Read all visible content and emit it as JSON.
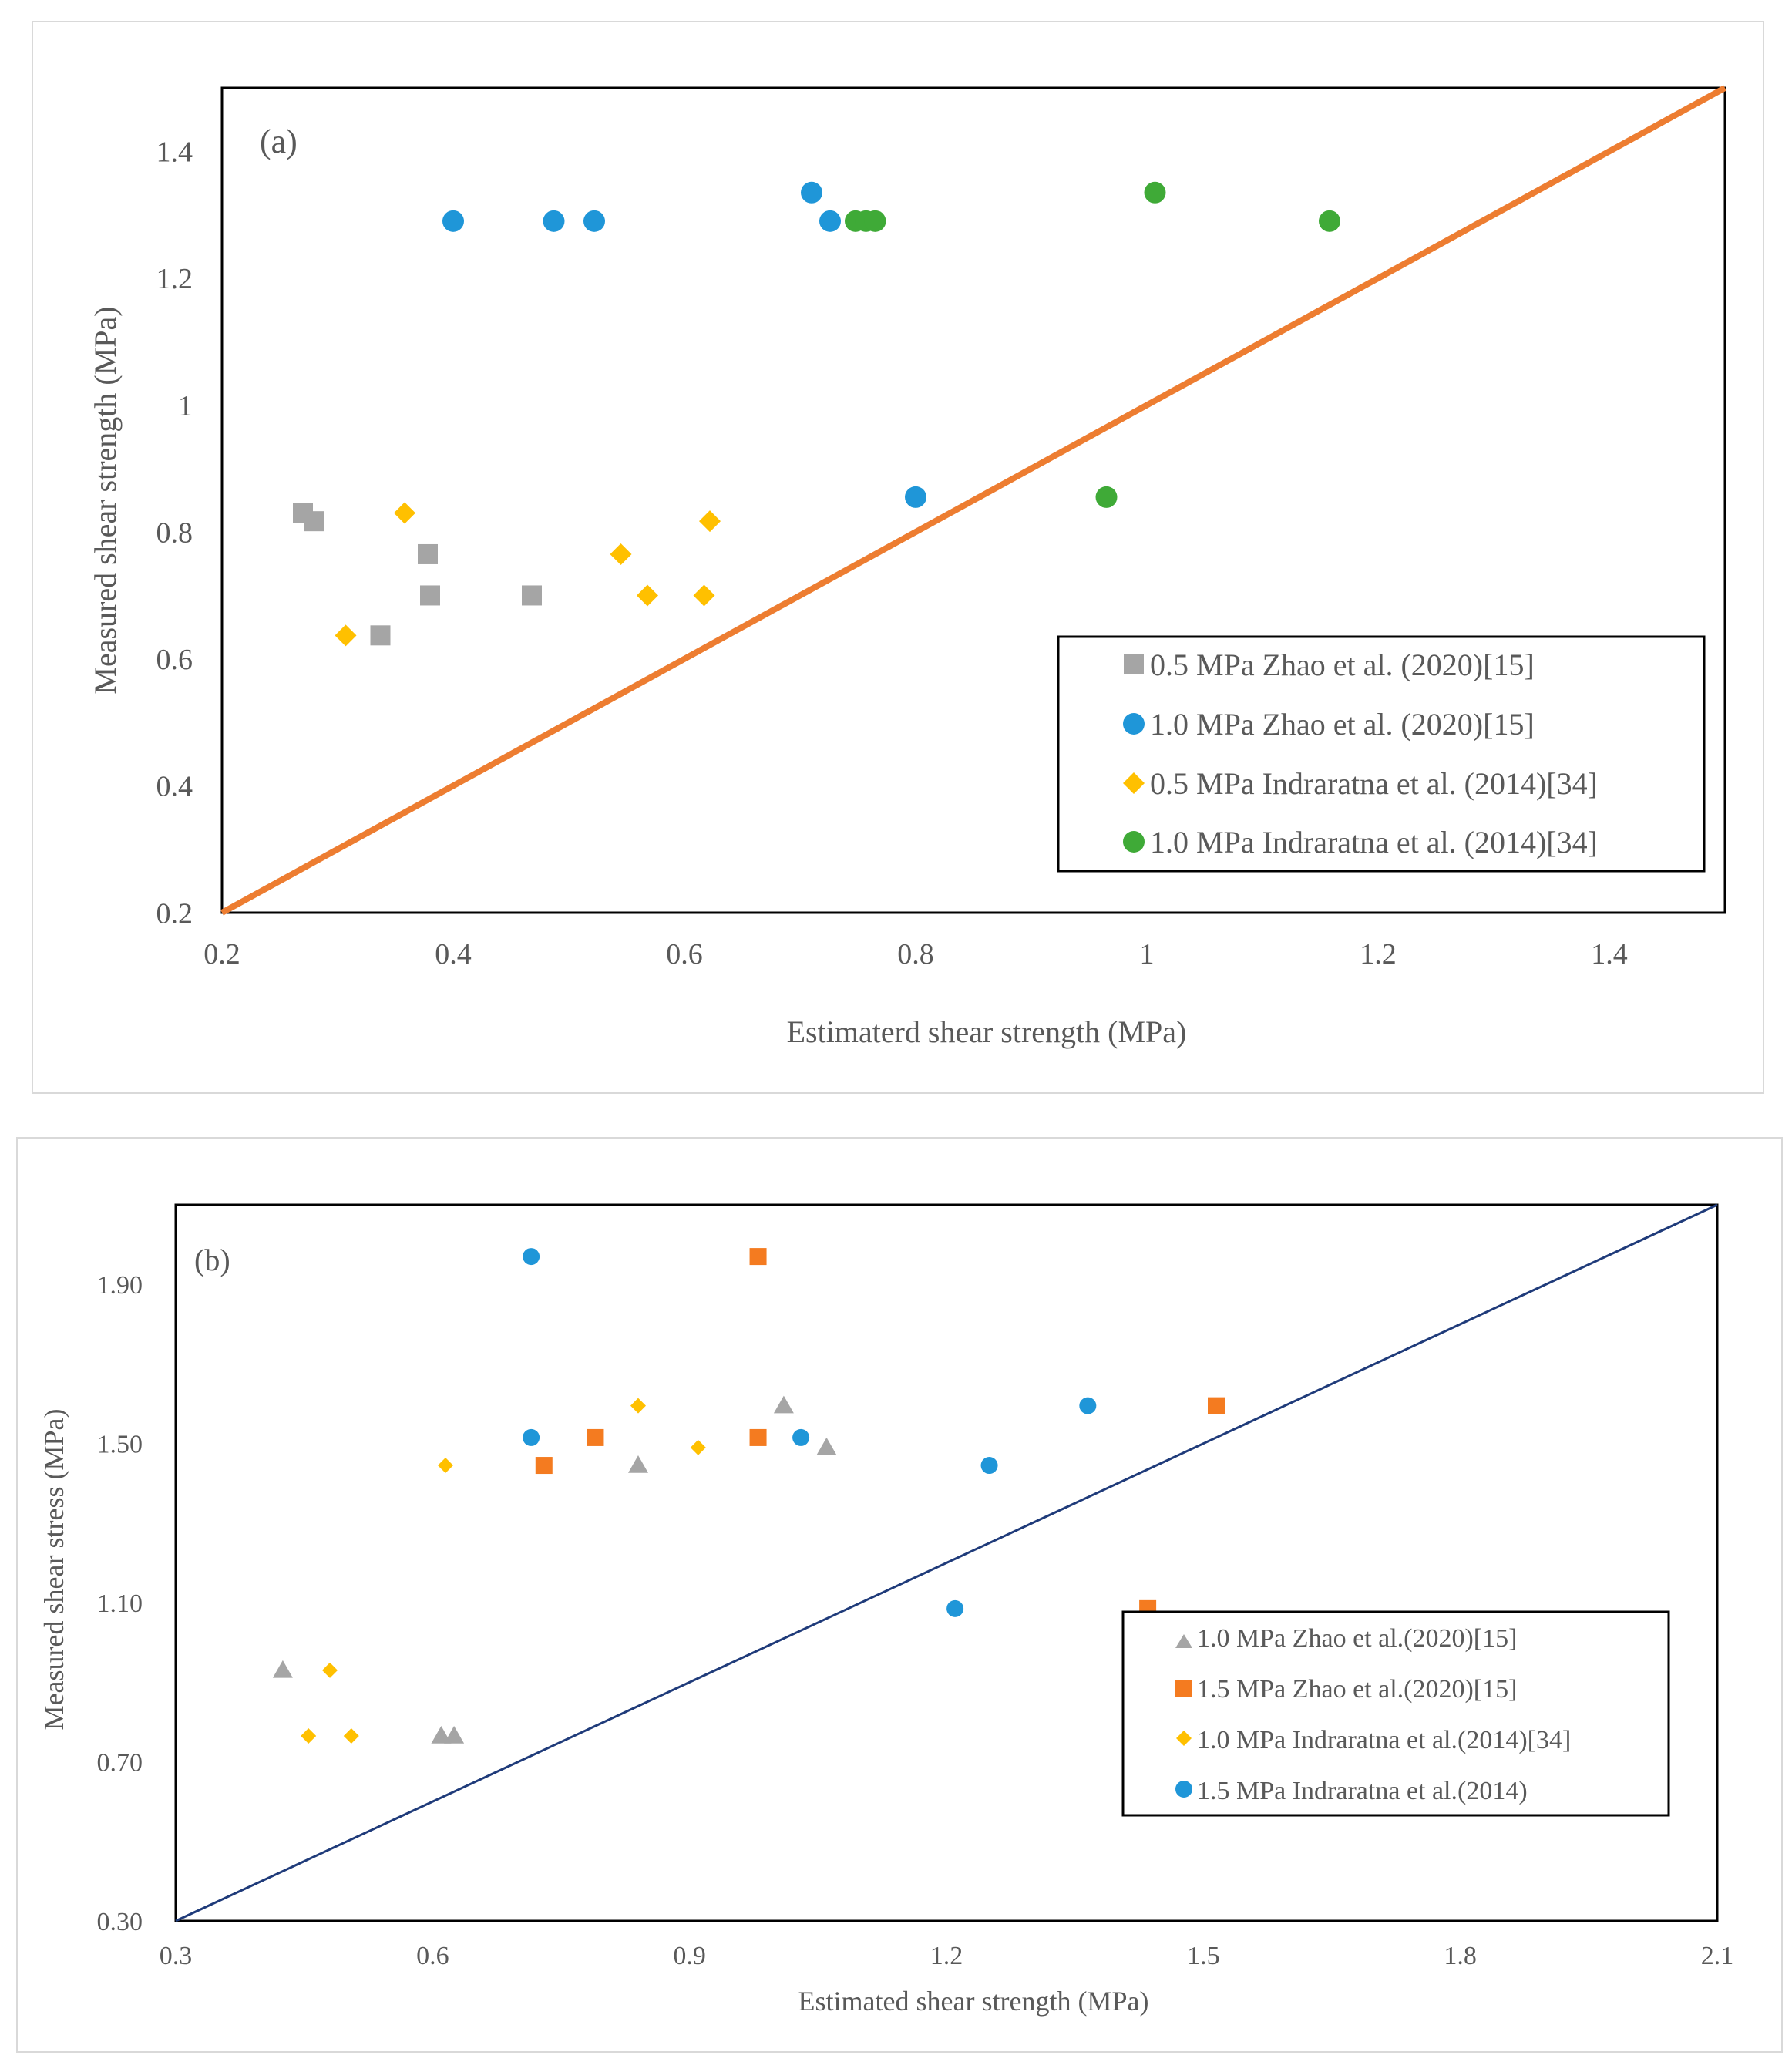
{
  "chart_data": [
    {
      "type": "scatter",
      "panel_label": "(a)",
      "xlabel": "Estimaterd shear strength (MPa)",
      "ylabel": "Measured shear strength (MPa)",
      "xlim": [
        0.2,
        1.5
      ],
      "ylim": [
        0.2,
        1.5
      ],
      "x_ticks": [
        0.2,
        0.4,
        0.6,
        0.8,
        1.0,
        1.2,
        1.4
      ],
      "x_tick_labels": [
        "0.2",
        "0.4",
        "0.6",
        "0.8",
        "1",
        "1.2",
        "1.4"
      ],
      "y_ticks": [
        0.2,
        0.4,
        0.6,
        0.8,
        1.0,
        1.2,
        1.4
      ],
      "y_tick_labels": [
        "0.2",
        "0.4",
        "0.6",
        "0.8",
        "1",
        "1.2",
        "1.4"
      ],
      "grid": false,
      "legend_position": "bottom-right",
      "reference_line": {
        "name": "1:1 line",
        "x": [
          0.2,
          1.5
        ],
        "y": [
          0.2,
          1.5
        ],
        "color": "#ED7D31"
      },
      "series": [
        {
          "name": "0.5 MPa Zhao et al. (2020)[15]",
          "marker": "square",
          "color": "#A5A5A5",
          "x": [
            0.27,
            0.28,
            0.378,
            0.38,
            0.468,
            0.337
          ],
          "y": [
            0.83,
            0.817,
            0.765,
            0.7,
            0.7,
            0.637
          ]
        },
        {
          "name": "1.0 MPa Zhao et al. (2020)[15]",
          "marker": "circle",
          "color": "#1F96D8",
          "x": [
            0.4,
            0.487,
            0.522,
            0.71,
            0.726,
            0.8
          ],
          "y": [
            1.29,
            1.29,
            1.29,
            1.335,
            1.29,
            0.855
          ]
        },
        {
          "name": "0.5 MPa Indraratna et al. (2014)[34]",
          "marker": "diamond",
          "color": "#FFC000",
          "x": [
            0.307,
            0.358,
            0.545,
            0.568,
            0.617,
            0.622
          ],
          "y": [
            0.637,
            0.83,
            0.765,
            0.7,
            0.7,
            0.817
          ]
        },
        {
          "name": "1.0 MPa Indraratna et al. (2014)[34]",
          "marker": "circle",
          "color": "#3FAA37",
          "x": [
            0.748,
            0.757,
            0.765,
            1.007,
            1.158,
            0.965
          ],
          "y": [
            1.29,
            1.29,
            1.29,
            1.335,
            1.29,
            0.855
          ]
        }
      ]
    },
    {
      "type": "scatter",
      "panel_label": "(b)",
      "xlabel": "Estimated shear strength (MPa)",
      "ylabel": "Measured shear stress (MPa)",
      "xlim": [
        0.3,
        2.1
      ],
      "ylim": [
        0.3,
        2.1
      ],
      "x_ticks": [
        0.3,
        0.6,
        0.9,
        1.2,
        1.5,
        1.8,
        2.1
      ],
      "x_tick_labels": [
        "0.3",
        "0.6",
        "0.9",
        "1.2",
        "1.5",
        "1.8",
        "2.1"
      ],
      "y_ticks": [
        0.3,
        0.7,
        1.1,
        1.5,
        1.9
      ],
      "y_tick_labels": [
        "0.30",
        "0.70",
        "1.10",
        "1.50",
        "1.90"
      ],
      "grid": false,
      "legend_position": "bottom-right",
      "reference_line": {
        "name": "1:1 line",
        "x": [
          0.3,
          2.1
        ],
        "y": [
          0.3,
          2.1
        ],
        "color": "#1F3B7A"
      },
      "series": [
        {
          "name": "1.0 MPa Zhao et al.(2020)[15]",
          "marker": "triangle",
          "color": "#A5A5A5",
          "x": [
            0.425,
            0.61,
            0.625,
            0.84,
            1.01,
            1.06
          ],
          "y": [
            0.93,
            0.765,
            0.765,
            1.445,
            1.595,
            1.49
          ]
        },
        {
          "name": "1.5 MPa Zhao et al.(2020)[15]",
          "marker": "square",
          "color": "#F47B20",
          "x": [
            0.98,
            0.73,
            0.79,
            0.98,
            1.515,
            1.435
          ],
          "y": [
            1.97,
            1.445,
            1.515,
            1.515,
            1.595,
            1.085
          ]
        },
        {
          "name": "1.0 MPa Indraratna et al.(2014)[34]",
          "marker": "diamond",
          "color": "#FFC000",
          "x": [
            0.48,
            0.455,
            0.505,
            0.615,
            0.84,
            0.91
          ],
          "y": [
            0.93,
            0.765,
            0.765,
            1.445,
            1.595,
            1.49
          ]
        },
        {
          "name": "1.5 MPa Indraratna et al.(2014)",
          "marker": "circle",
          "color": "#1F96D8",
          "x": [
            0.715,
            0.715,
            1.03,
            1.25,
            1.365,
            1.21
          ],
          "y": [
            1.97,
            1.515,
            1.515,
            1.445,
            1.595,
            1.085
          ]
        }
      ]
    }
  ]
}
